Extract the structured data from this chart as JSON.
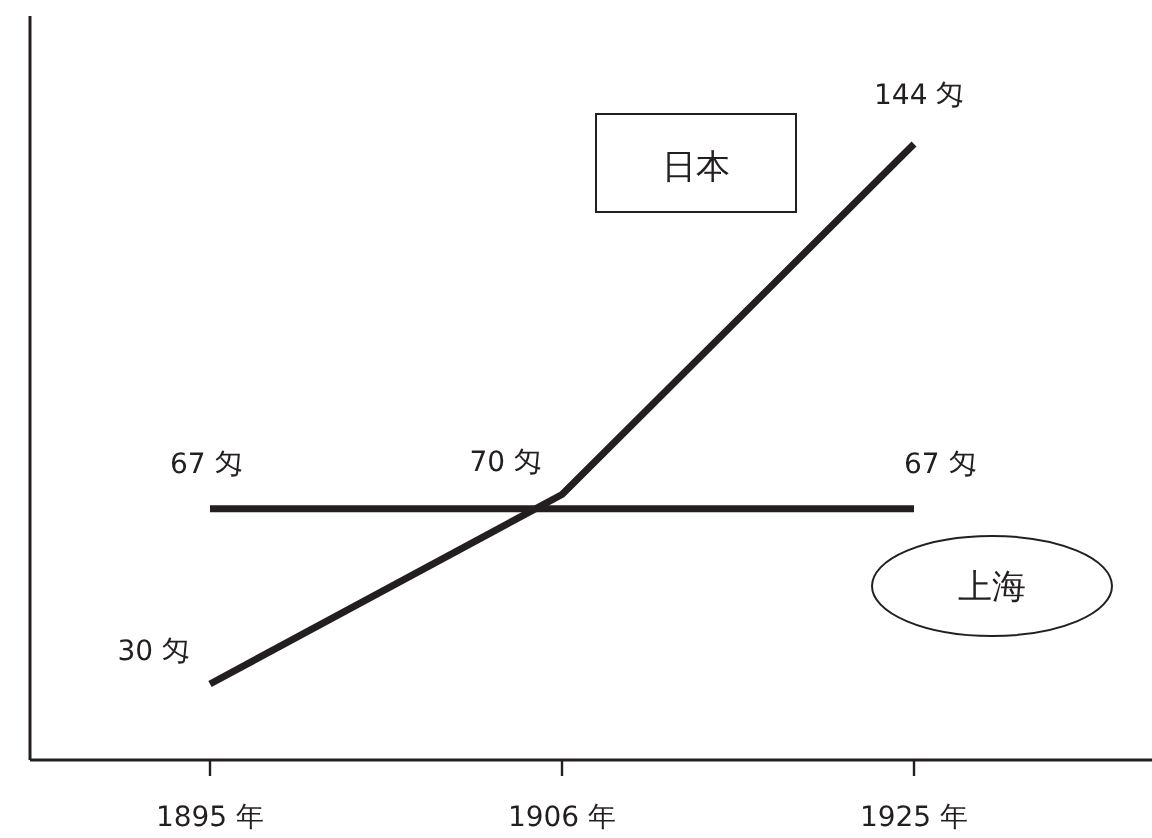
{
  "chart_data": {
    "type": "line",
    "categories": [
      "1895 年",
      "1906 年",
      "1925 年"
    ],
    "series": [
      {
        "name": "日本",
        "color": "#231f20",
        "values": [
          30,
          70,
          144
        ],
        "value_labels": [
          "30 匁",
          "70 匁",
          "144 匁"
        ]
      },
      {
        "name": "上海",
        "color": "#231f20",
        "values": [
          67,
          67,
          67
        ],
        "value_labels": [
          "67 匁",
          null,
          "67 匁"
        ]
      }
    ],
    "tick_labels": "x",
    "grid": false,
    "legend": false,
    "marker": "none",
    "line_style": "solid"
  }
}
